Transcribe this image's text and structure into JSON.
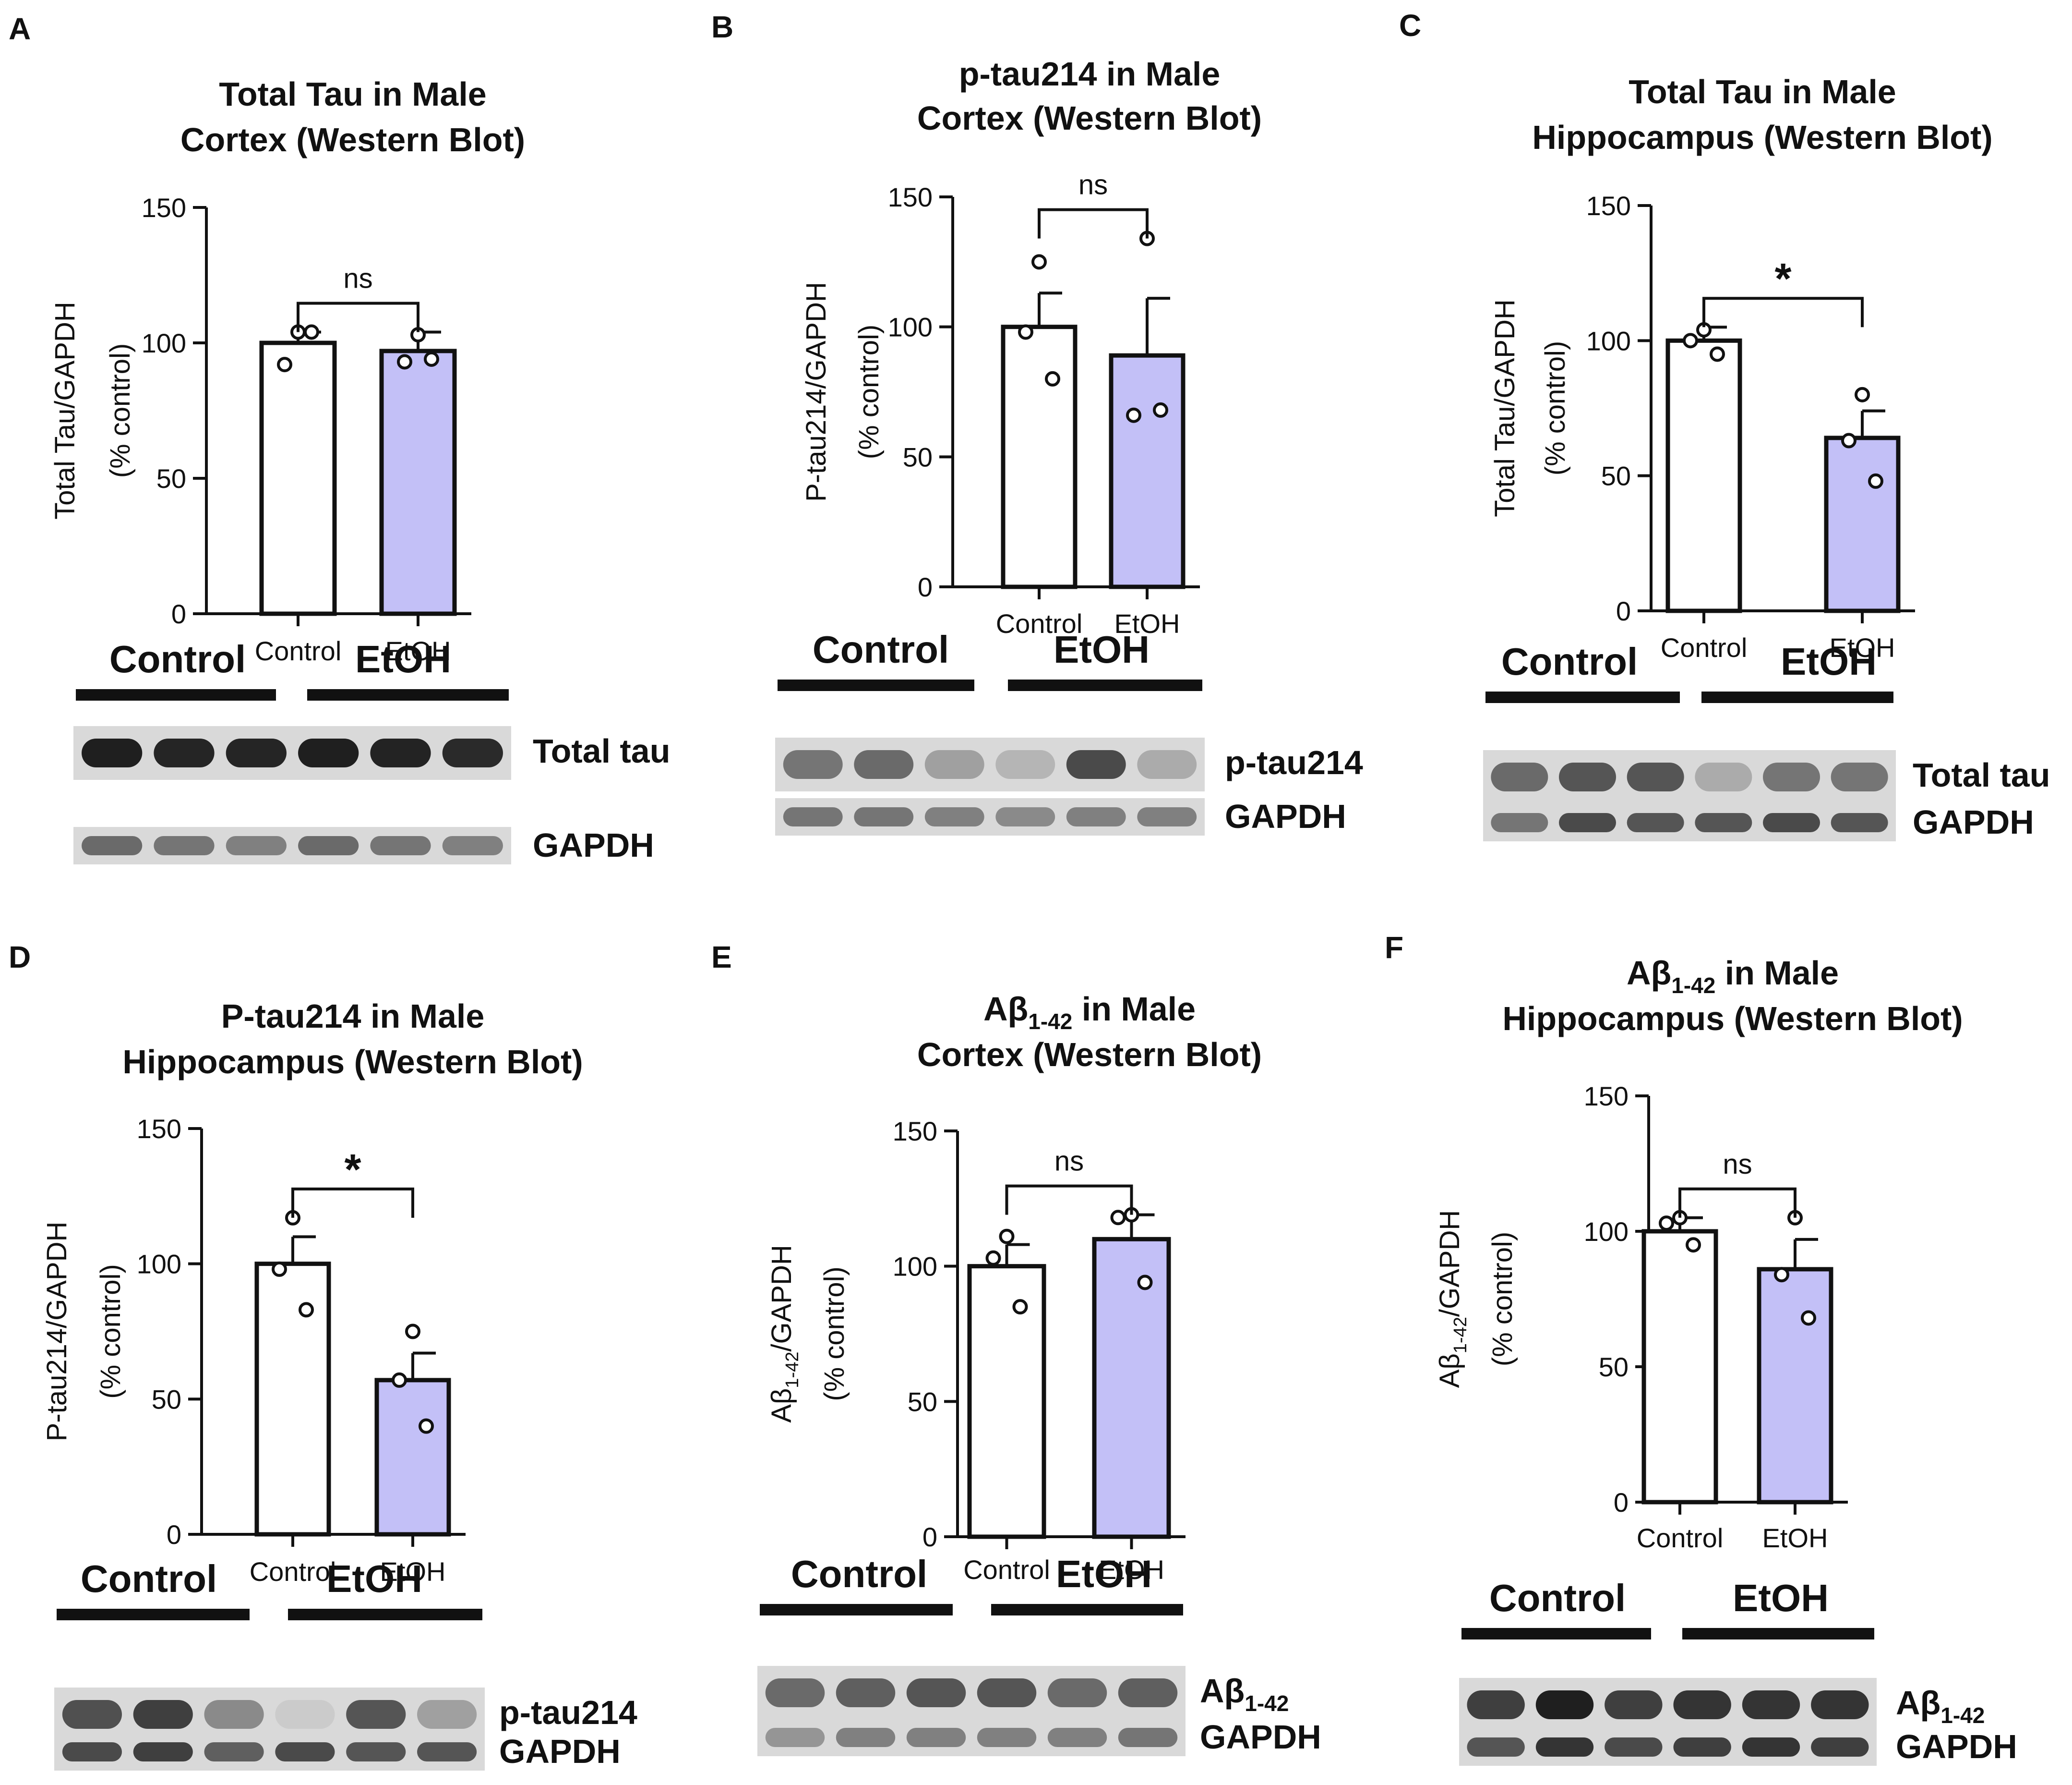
{
  "figure": {
    "panels": [
      {
        "letter": "A",
        "title_lines": [
          "Total Tau in Male",
          "Cortex (Western Blot)"
        ],
        "ylabel_lines": [
          "Total Tau/GAPDH",
          "(% control)"
        ],
        "sig": "ns",
        "band_label": "Total tau"
      },
      {
        "letter": "B",
        "title_lines": [
          "p-tau214 in Male",
          "Cortex (Western Blot)"
        ],
        "ylabel_lines": [
          "P-tau214/GAPDH",
          "(% control)"
        ],
        "sig": "ns",
        "band_label": "p-tau214"
      },
      {
        "letter": "C",
        "title_lines": [
          "Total Tau in Male",
          "Hippocampus (Western Blot)"
        ],
        "ylabel_lines": [
          "Total Tau/GAPDH",
          "(% control)"
        ],
        "sig": "*",
        "band_label": "Total tau"
      },
      {
        "letter": "D",
        "title_lines": [
          "P-tau214 in Male",
          "Hippocampus (Western Blot)"
        ],
        "ylabel_lines": [
          "P-tau214/GAPDH",
          "(% control)"
        ],
        "sig": "*",
        "band_label": "p-tau214"
      },
      {
        "letter": "E",
        "title_lines": [
          "Aβ1-42 in Male",
          "Cortex (Western Blot)"
        ],
        "ylabel_lines": [
          "Aβ1-42/GAPDH",
          "(% control)"
        ],
        "sig": "ns",
        "band_label": "Aβ1-42"
      },
      {
        "letter": "F",
        "title_lines": [
          "Aβ1-42 in Male",
          "Hippocampus (Western Blot)"
        ],
        "ylabel_lines": [
          "Aβ1-42/GAPDH",
          "(% control)"
        ],
        "sig": "ns",
        "band_label": "Aβ1-42"
      }
    ],
    "blot": {
      "group_labels": [
        "Control",
        "EtOH"
      ],
      "loading_label": "GAPDH"
    },
    "colors": {
      "control_fill": "#ffffff",
      "etoh_fill": "#c3c0f7",
      "ink": "#111111"
    }
  },
  "chart_data": [
    {
      "type": "bar",
      "title": "Total Tau in Male Cortex (Western Blot)",
      "xlabel": "",
      "ylabel": "Total Tau/GAPDH (% control)",
      "ylim": [
        0,
        150
      ],
      "yticks": [
        0,
        50,
        100,
        150
      ],
      "categories": [
        "Control",
        "EtOH"
      ],
      "values": [
        100,
        97
      ],
      "error_sem": [
        4,
        7
      ],
      "points": [
        [
          104,
          92,
          104
        ],
        [
          103,
          93,
          94
        ]
      ],
      "significance": "ns"
    },
    {
      "type": "bar",
      "title": "p-tau214 in Male Cortex (Western Blot)",
      "xlabel": "",
      "ylabel": "P-tau214/GAPDH (% control)",
      "ylim": [
        0,
        150
      ],
      "yticks": [
        0,
        50,
        100,
        150
      ],
      "categories": [
        "Control",
        "EtOH"
      ],
      "values": [
        100,
        89
      ],
      "error_sem": [
        13,
        22
      ],
      "points": [
        [
          125,
          98,
          80
        ],
        [
          134,
          66,
          68
        ]
      ],
      "significance": "ns"
    },
    {
      "type": "bar",
      "title": "Total Tau in Male Hippocampus (Western Blot)",
      "xlabel": "",
      "ylabel": "Total Tau/GAPDH (% control)",
      "ylim": [
        0,
        150
      ],
      "yticks": [
        0,
        50,
        100,
        150
      ],
      "categories": [
        "Control",
        "EtOH"
      ],
      "values": [
        100,
        64
      ],
      "error_sem": [
        5,
        10
      ],
      "points": [
        [
          104,
          100,
          95
        ],
        [
          80,
          63,
          48
        ]
      ],
      "significance": "*"
    },
    {
      "type": "bar",
      "title": "P-tau214 in Male Hippocampus (Western Blot)",
      "xlabel": "",
      "ylabel": "P-tau214/GAPDH (% control)",
      "ylim": [
        0,
        150
      ],
      "yticks": [
        0,
        50,
        100,
        150
      ],
      "categories": [
        "Control",
        "EtOH"
      ],
      "values": [
        100,
        57
      ],
      "error_sem": [
        10,
        10
      ],
      "points": [
        [
          117,
          98,
          83
        ],
        [
          75,
          57,
          40
        ]
      ],
      "significance": "*"
    },
    {
      "type": "bar",
      "title": "Aβ1-42 in Male Cortex (Western Blot)",
      "xlabel": "",
      "ylabel": "Aβ1-42/GAPDH (% control)",
      "ylim": [
        0,
        150
      ],
      "yticks": [
        0,
        50,
        100,
        150
      ],
      "categories": [
        "Control",
        "EtOH"
      ],
      "values": [
        100,
        110
      ],
      "error_sem": [
        8,
        9
      ],
      "points": [
        [
          111,
          103,
          85
        ],
        [
          119,
          118,
          94
        ]
      ],
      "significance": "ns"
    },
    {
      "type": "bar",
      "title": "Aβ1-42 in Male Hippocampus (Western Blot)",
      "xlabel": "",
      "ylabel": "Aβ1-42/GAPDH (% control)",
      "ylim": [
        0,
        150
      ],
      "yticks": [
        0,
        50,
        100,
        150
      ],
      "categories": [
        "Control",
        "EtOH"
      ],
      "values": [
        100,
        86
      ],
      "error_sem": [
        5,
        11
      ],
      "points": [
        [
          105,
          103,
          95
        ],
        [
          105,
          84,
          68
        ]
      ],
      "significance": "ns"
    }
  ]
}
